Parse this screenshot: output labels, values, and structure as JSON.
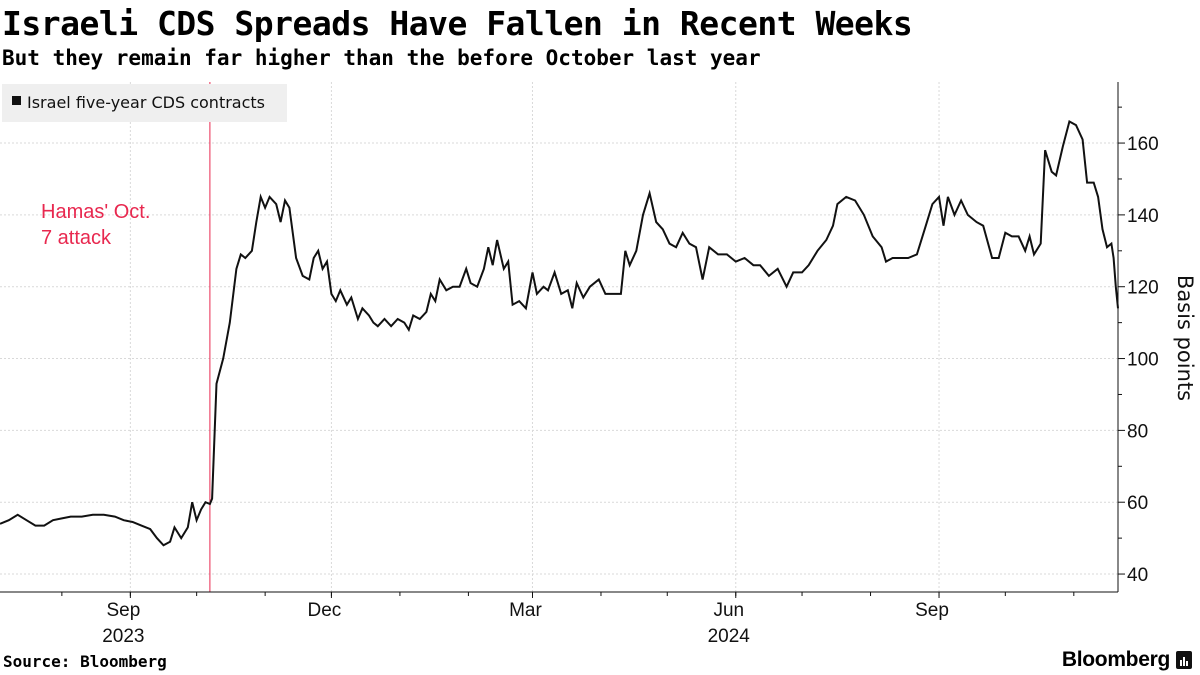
{
  "header": {
    "title": "Israeli CDS Spreads Have Fallen in Recent Weeks",
    "subtitle": "But they remain far higher than the before October last year"
  },
  "footer": {
    "source": "Source: Bloomberg",
    "brand": "Bloomberg"
  },
  "colors": {
    "line": "#111111",
    "grid": "#d9d9d9",
    "annotation": "#e8284f",
    "legend_bg": "#efefef"
  },
  "chart_data": {
    "type": "line",
    "title": "Israeli CDS Spreads Have Fallen in Recent Weeks",
    "subtitle": "But they remain far higher than the before October last year",
    "ylabel": "Basis points",
    "xlabel": "",
    "ylim": [
      35,
      177
    ],
    "yticks": [
      40,
      60,
      80,
      100,
      120,
      140,
      160
    ],
    "xlim": [
      "2023-07-04",
      "2024-11-21"
    ],
    "xticks": [
      {
        "label": "Sep",
        "date": "2023-09-01",
        "year": "2023"
      },
      {
        "label": "Dec",
        "date": "2023-12-01",
        "year": ""
      },
      {
        "label": "Mar",
        "date": "2024-03-01",
        "year": ""
      },
      {
        "label": "Jun",
        "date": "2024-06-01",
        "year": "2024"
      },
      {
        "label": "Sep",
        "date": "2024-09-01",
        "year": ""
      }
    ],
    "legend": [
      {
        "name": "Israel five-year CDS contracts",
        "placement": "top-left"
      }
    ],
    "annotations": [
      {
        "date": "2023-10-07",
        "text": [
          "Hamas' Oct.",
          "7 attack"
        ]
      }
    ],
    "series": [
      {
        "name": "Israel five-year CDS contracts",
        "points": [
          [
            "2023-07-04",
            54
          ],
          [
            "2023-07-08",
            55
          ],
          [
            "2023-07-12",
            56.5
          ],
          [
            "2023-07-16",
            55
          ],
          [
            "2023-07-20",
            53.5
          ],
          [
            "2023-07-24",
            53.5
          ],
          [
            "2023-07-28",
            55
          ],
          [
            "2023-08-01",
            55.5
          ],
          [
            "2023-08-05",
            56
          ],
          [
            "2023-08-10",
            56
          ],
          [
            "2023-08-15",
            56.5
          ],
          [
            "2023-08-20",
            56.5
          ],
          [
            "2023-08-25",
            56
          ],
          [
            "2023-08-29",
            55
          ],
          [
            "2023-09-02",
            54.5
          ],
          [
            "2023-09-06",
            53.5
          ],
          [
            "2023-09-10",
            52.5
          ],
          [
            "2023-09-13",
            50
          ],
          [
            "2023-09-16",
            48
          ],
          [
            "2023-09-19",
            49
          ],
          [
            "2023-09-21",
            53
          ],
          [
            "2023-09-24",
            50
          ],
          [
            "2023-09-27",
            53
          ],
          [
            "2023-09-29",
            60
          ],
          [
            "2023-10-01",
            55
          ],
          [
            "2023-10-03",
            58
          ],
          [
            "2023-10-05",
            60
          ],
          [
            "2023-10-07",
            59.5
          ],
          [
            "2023-10-08",
            61
          ],
          [
            "2023-10-10",
            93
          ],
          [
            "2023-10-13",
            100
          ],
          [
            "2023-10-16",
            110
          ],
          [
            "2023-10-19",
            125
          ],
          [
            "2023-10-21",
            129
          ],
          [
            "2023-10-23",
            128
          ],
          [
            "2023-10-26",
            130
          ],
          [
            "2023-10-28",
            138
          ],
          [
            "2023-10-30",
            145
          ],
          [
            "2023-11-01",
            142
          ],
          [
            "2023-11-03",
            145
          ],
          [
            "2023-11-06",
            143
          ],
          [
            "2023-11-08",
            138
          ],
          [
            "2023-11-10",
            144
          ],
          [
            "2023-11-12",
            142
          ],
          [
            "2023-11-15",
            128
          ],
          [
            "2023-11-18",
            123
          ],
          [
            "2023-11-21",
            122
          ],
          [
            "2023-11-23",
            128
          ],
          [
            "2023-11-25",
            130
          ],
          [
            "2023-11-27",
            125
          ],
          [
            "2023-11-29",
            127
          ],
          [
            "2023-12-01",
            118
          ],
          [
            "2023-12-03",
            116
          ],
          [
            "2023-12-05",
            119
          ],
          [
            "2023-12-08",
            115
          ],
          [
            "2023-12-10",
            117
          ],
          [
            "2023-12-13",
            111
          ],
          [
            "2023-12-15",
            114
          ],
          [
            "2023-12-18",
            112
          ],
          [
            "2023-12-20",
            110
          ],
          [
            "2023-12-22",
            109
          ],
          [
            "2023-12-25",
            111
          ],
          [
            "2023-12-28",
            109
          ],
          [
            "2023-12-31",
            111
          ],
          [
            "2024-01-03",
            110
          ],
          [
            "2024-01-05",
            108
          ],
          [
            "2024-01-07",
            112
          ],
          [
            "2024-01-10",
            111
          ],
          [
            "2024-01-13",
            113
          ],
          [
            "2024-01-15",
            118
          ],
          [
            "2024-01-17",
            116
          ],
          [
            "2024-01-19",
            122
          ],
          [
            "2024-01-22",
            119
          ],
          [
            "2024-01-25",
            120
          ],
          [
            "2024-01-28",
            120
          ],
          [
            "2024-01-31",
            125
          ],
          [
            "2024-02-02",
            121
          ],
          [
            "2024-02-05",
            120
          ],
          [
            "2024-02-08",
            125
          ],
          [
            "2024-02-10",
            131
          ],
          [
            "2024-02-12",
            126
          ],
          [
            "2024-02-14",
            133
          ],
          [
            "2024-02-17",
            125
          ],
          [
            "2024-02-19",
            127
          ],
          [
            "2024-02-21",
            115
          ],
          [
            "2024-02-24",
            116
          ],
          [
            "2024-02-27",
            114
          ],
          [
            "2024-03-01",
            124
          ],
          [
            "2024-03-03",
            118
          ],
          [
            "2024-03-06",
            120
          ],
          [
            "2024-03-08",
            119
          ],
          [
            "2024-03-11",
            124
          ],
          [
            "2024-03-14",
            118
          ],
          [
            "2024-03-17",
            119
          ],
          [
            "2024-03-19",
            114
          ],
          [
            "2024-03-21",
            121
          ],
          [
            "2024-03-24",
            117
          ],
          [
            "2024-03-27",
            120
          ],
          [
            "2024-03-31",
            122
          ],
          [
            "2024-04-03",
            118
          ],
          [
            "2024-04-06",
            118
          ],
          [
            "2024-04-10",
            118
          ],
          [
            "2024-04-12",
            130
          ],
          [
            "2024-04-14",
            126
          ],
          [
            "2024-04-17",
            130
          ],
          [
            "2024-04-20",
            140
          ],
          [
            "2024-04-23",
            146
          ],
          [
            "2024-04-26",
            138
          ],
          [
            "2024-04-29",
            136
          ],
          [
            "2024-05-02",
            132
          ],
          [
            "2024-05-05",
            131
          ],
          [
            "2024-05-08",
            135
          ],
          [
            "2024-05-11",
            132
          ],
          [
            "2024-05-14",
            131
          ],
          [
            "2024-05-17",
            122
          ],
          [
            "2024-05-20",
            131
          ],
          [
            "2024-05-24",
            129
          ],
          [
            "2024-05-28",
            129
          ],
          [
            "2024-06-01",
            127
          ],
          [
            "2024-06-05",
            128
          ],
          [
            "2024-06-09",
            126
          ],
          [
            "2024-06-12",
            126
          ],
          [
            "2024-06-16",
            123
          ],
          [
            "2024-06-20",
            125
          ],
          [
            "2024-06-24",
            120
          ],
          [
            "2024-06-27",
            124
          ],
          [
            "2024-07-01",
            124
          ],
          [
            "2024-07-04",
            126
          ],
          [
            "2024-07-08",
            130
          ],
          [
            "2024-07-12",
            133
          ],
          [
            "2024-07-15",
            137
          ],
          [
            "2024-07-17",
            143
          ],
          [
            "2024-07-21",
            145
          ],
          [
            "2024-07-25",
            144
          ],
          [
            "2024-07-29",
            140
          ],
          [
            "2024-08-02",
            134
          ],
          [
            "2024-08-06",
            131
          ],
          [
            "2024-08-08",
            127
          ],
          [
            "2024-08-11",
            128
          ],
          [
            "2024-08-14",
            128
          ],
          [
            "2024-08-18",
            128
          ],
          [
            "2024-08-22",
            129
          ],
          [
            "2024-08-26",
            137
          ],
          [
            "2024-08-29",
            143
          ],
          [
            "2024-09-01",
            145
          ],
          [
            "2024-09-03",
            137
          ],
          [
            "2024-09-05",
            145
          ],
          [
            "2024-09-08",
            140
          ],
          [
            "2024-09-11",
            144
          ],
          [
            "2024-09-14",
            140
          ],
          [
            "2024-09-18",
            138
          ],
          [
            "2024-09-21",
            137
          ],
          [
            "2024-09-25",
            128
          ],
          [
            "2024-09-28",
            128
          ],
          [
            "2024-10-01",
            135
          ],
          [
            "2024-10-04",
            134
          ],
          [
            "2024-10-07",
            134
          ],
          [
            "2024-10-10",
            130
          ],
          [
            "2024-10-12",
            134
          ],
          [
            "2024-10-14",
            129
          ],
          [
            "2024-10-17",
            132
          ],
          [
            "2024-10-19",
            158
          ],
          [
            "2024-10-22",
            152
          ],
          [
            "2024-10-24",
            151
          ],
          [
            "2024-10-27",
            159
          ],
          [
            "2024-10-30",
            166
          ],
          [
            "2024-11-02",
            165
          ],
          [
            "2024-11-05",
            161
          ],
          [
            "2024-11-07",
            149
          ],
          [
            "2024-11-10",
            149
          ],
          [
            "2024-11-12",
            145
          ],
          [
            "2024-11-14",
            136
          ],
          [
            "2024-11-16",
            131
          ],
          [
            "2024-11-18",
            132
          ],
          [
            "2024-11-19",
            128
          ],
          [
            "2024-11-20",
            120
          ],
          [
            "2024-11-21",
            114
          ]
        ]
      }
    ]
  }
}
